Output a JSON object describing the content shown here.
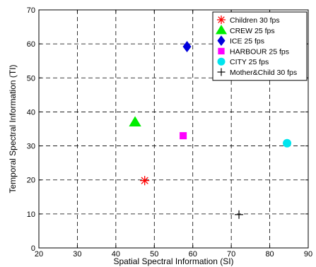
{
  "chart_data": {
    "type": "scatter",
    "title": "",
    "xlabel": "Spatial Spectral Information (SI)",
    "ylabel": "Temporal Spectral Information (TI)",
    "xlim": [
      20,
      90
    ],
    "ylim": [
      0,
      70
    ],
    "xticks": [
      20,
      30,
      40,
      50,
      60,
      70,
      80,
      90
    ],
    "yticks": [
      0,
      10,
      20,
      30,
      40,
      50,
      60,
      70
    ],
    "grid": true,
    "legend_position": "top-right",
    "series": [
      {
        "name": "Children 30 fps",
        "marker": "asterisk",
        "color": "#ff0000",
        "x": 47.5,
        "y": 19.8
      },
      {
        "name": "CREW 25 fps",
        "marker": "triangle",
        "color": "#00ee00",
        "x": 45,
        "y": 37
      },
      {
        "name": "ICE 25 fps",
        "marker": "diamond",
        "color": "#0000dd",
        "x": 58.5,
        "y": 59.2
      },
      {
        "name": "HARBOUR 25 fps",
        "marker": "square",
        "color": "#ff00ff",
        "x": 57.5,
        "y": 33
      },
      {
        "name": "CITY 25 fps",
        "marker": "circle",
        "color": "#00e5ee",
        "x": 84.5,
        "y": 30.8
      },
      {
        "name": "Mother&Child 30 fps",
        "marker": "plus",
        "color": "#000000",
        "x": 72,
        "y": 9.8
      }
    ]
  }
}
